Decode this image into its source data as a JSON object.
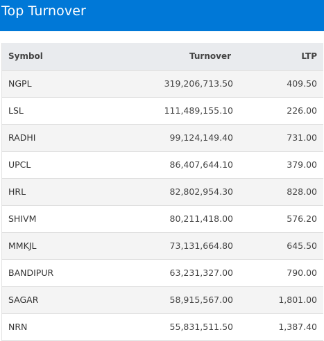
{
  "header": {
    "title": "Top Turnover"
  },
  "table": {
    "columns": [
      "Symbol",
      "Turnover",
      "LTP"
    ],
    "rows": [
      {
        "symbol": "NGPL",
        "turnover": "319,206,713.50",
        "ltp": "409.50"
      },
      {
        "symbol": "LSL",
        "turnover": "111,489,155.10",
        "ltp": "226.00"
      },
      {
        "symbol": "RADHI",
        "turnover": "99,124,149.40",
        "ltp": "731.00"
      },
      {
        "symbol": "UPCL",
        "turnover": "86,407,644.10",
        "ltp": "379.00"
      },
      {
        "symbol": "HRL",
        "turnover": "82,802,954.30",
        "ltp": "828.00"
      },
      {
        "symbol": "SHIVM",
        "turnover": "80,211,418.00",
        "ltp": "576.20"
      },
      {
        "symbol": "MMKJL",
        "turnover": "73,131,664.80",
        "ltp": "645.50"
      },
      {
        "symbol": "BANDIPUR",
        "turnover": "63,231,327.00",
        "ltp": "790.00"
      },
      {
        "symbol": "SAGAR",
        "turnover": "58,915,567.00",
        "ltp": "1,801.00"
      },
      {
        "symbol": "NRN",
        "turnover": "55,831,511.50",
        "ltp": "1,387.40"
      }
    ]
  },
  "colors": {
    "header_bg": "#0078d7",
    "header_text": "#ffffff",
    "table_head_bg": "#e9ebee",
    "row_alt_bg": "#f4f4f4"
  }
}
